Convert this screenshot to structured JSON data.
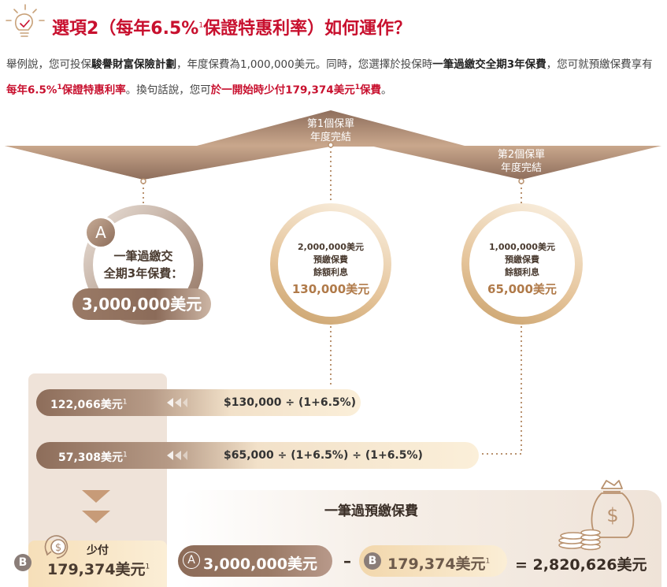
{
  "title": {
    "prefix": "選項2（每年6.5%",
    "sup": "1",
    "suffix": "保證特惠利率）如何運作？"
  },
  "intro": {
    "t1": "舉例說，您可投保",
    "plan": "駿譽財富保險計劃",
    "t2": "，年度保費為1,000,000美元。同時，您選擇於投保時",
    "single": "一筆過繳交全期3年保費",
    "t3": "，您可就預繳保費享有",
    "rate": "每年6.5%",
    "rate_sup": "1",
    "rate2": "保證特惠利率",
    "t4": "。換句話說，您可",
    "save": "於一開始時少付179,374美元",
    "save_sup": "1",
    "save2": "保費",
    "t5": "。"
  },
  "banners": {
    "year1": "第1個保單\n年度完結",
    "year2": "第2個保單\n年度完結"
  },
  "circle_a": {
    "badge": "A",
    "label": "一筆過繳交\n全期3年保費：",
    "amount": "3,000,000美元"
  },
  "circle_2": {
    "label": "2,000,000美元\n預繳保費\n餘額利息",
    "amount": "130,000美元"
  },
  "circle_3": {
    "label": "1,000,000美元\n預繳保費\n餘額利息",
    "amount": "65,000美元"
  },
  "rows": [
    {
      "value": "122,066美元",
      "sup": "1",
      "formula": "$130,000 ÷ (1+6.5%)"
    },
    {
      "value": "57,308美元",
      "sup": "1",
      "formula": "$65,000 ÷ (1+6.5%) ÷ (1+6.5%)"
    }
  ],
  "box_b": {
    "badge": "B",
    "label": "少付",
    "amount": "179,374美元",
    "sup": "1"
  },
  "summary": {
    "title": "一筆過預繳保費",
    "a_badge": "A",
    "a_amount": "3,000,000美元",
    "minus": "–",
    "b_badge": "B",
    "b_amount": "179,374美元",
    "b_sup": "1",
    "result": "= 2,820,626美元"
  },
  "icons": [
    "lightbulb-icon",
    "money-bag-icon",
    "coin-stack-icon",
    "dollar-coin-icon",
    "double-arrow-left-icon",
    "chevron-down-icon"
  ],
  "colors": {
    "accent": "#c8102e",
    "bronze": "#a88470",
    "gold": "#c8a06a",
    "light": "#f5e3c3"
  }
}
